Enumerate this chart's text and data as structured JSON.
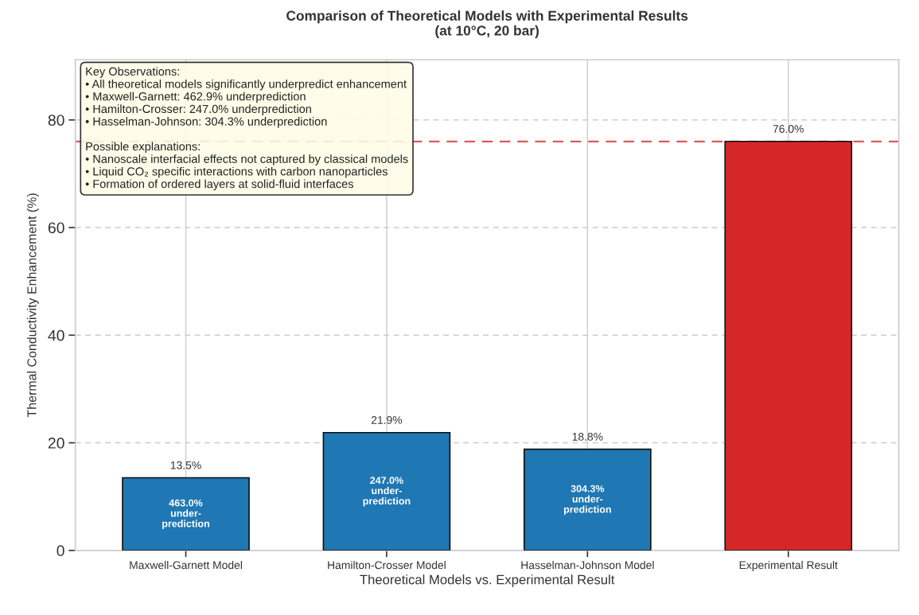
{
  "chart_data": {
    "type": "bar",
    "title": "Comparison of Theoretical Models with Experimental Results\n(at 10°C, 20 bar)",
    "xlabel": "Theoretical Models vs. Experimental Result",
    "ylabel": "Thermal Conductivity Enhancement (%)",
    "categories": [
      "Maxwell-Garnett Model",
      "Hamilton-Crosser Model",
      "Hasselman-Johnson Model",
      "Experimental Result"
    ],
    "values": [
      13.5,
      21.9,
      18.8,
      76.0
    ],
    "colors": [
      "#1f77b4",
      "#1f77b4",
      "#1f77b4",
      "#d62728"
    ],
    "value_labels": [
      "13.5%",
      "21.9%",
      "18.8%",
      "76.0%"
    ],
    "ylim": [
      0,
      91.2
    ],
    "yticks": [
      0,
      20,
      40,
      60,
      80
    ],
    "grid": true,
    "ref_lines": [
      {
        "axis": "y",
        "value": 76.0,
        "color": "#e0575e",
        "line_style": "dashed"
      }
    ],
    "annotations": [
      "Key Observations:\n• All theoretical models significantly underpredict enhancement\n• Maxwell-Garnett: 462.9% underprediction\n• Hamilton-Crosser: 247.0% underprediction\n• Hasselman-Johnson: 304.3% underprediction\n\nPossible explanations:\n• Nanoscale interfacial effects not captured by classical models\n• Liquid CO₂ specific interactions with carbon nanoparticles\n• Formation of ordered layers at solid-fluid interfaces",
      "463.0%\nunder-\nprediction",
      "247.0%\nunder-\nprediction",
      "304.3%\nunder-\nprediction"
    ]
  }
}
